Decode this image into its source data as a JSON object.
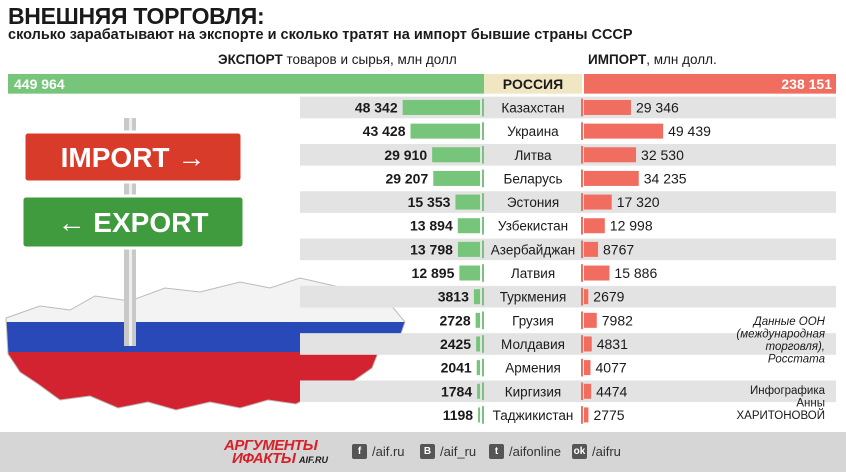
{
  "header": {
    "title": "ВНЕШНЯЯ ТОРГОВЛЯ:",
    "subtitle": "сколько зарабатывают на экспорте и сколько тратят на импорт бывшие страны СССР",
    "export_head_bold": "ЭКСПОРТ",
    "export_head_rest": " товаров и сырья, млн долл",
    "import_head_bold": "ИМПОРТ",
    "import_head_rest": ", млн долл."
  },
  "illustration": {
    "sign_top": "IMPORT →",
    "sign_bottom": "← EXPORT"
  },
  "colors": {
    "export": "#77c57a",
    "import": "#f06d5f",
    "row_band": "#e3e3e3",
    "russia_band": "#f1e6c2"
  },
  "chart_data": {
    "type": "bar",
    "series": [
      {
        "name": "ЭКСПОРТ",
        "values": [
          449964,
          48342,
          43428,
          29910,
          29207,
          15353,
          13894,
          13798,
          12895,
          3813,
          2728,
          2425,
          2041,
          1784,
          1198
        ]
      },
      {
        "name": "ИМПОРТ",
        "values": [
          238151,
          29346,
          49439,
          32530,
          34235,
          17320,
          12998,
          8767,
          15886,
          2679,
          7982,
          4831,
          4077,
          4474,
          2775
        ]
      }
    ],
    "categories": [
      "РОССИЯ",
      "Казахстан",
      "Украина",
      "Литва",
      "Беларусь",
      "Эстония",
      "Узбекистан",
      "Азербайджан",
      "Латвия",
      "Туркмения",
      "Грузия",
      "Молдавия",
      "Армения",
      "Киргизия",
      "Таджикистан"
    ],
    "labels_export": [
      "449 964",
      "48 342",
      "43 428",
      "29 910",
      "29 207",
      "15 353",
      "13 894",
      "13 798",
      "12 895",
      "3813",
      "2728",
      "2425",
      "2041",
      "1784",
      "1198"
    ],
    "labels_import": [
      "238 151",
      "29 346",
      "49 439",
      "32 530",
      "34 235",
      "17 320",
      "12 998",
      "8767",
      "15 886",
      "2679",
      "7982",
      "4831",
      "4077",
      "4474",
      "2775"
    ]
  },
  "notes": {
    "source": [
      "Данные ООН",
      "(международная",
      "торговля),",
      "Росстата"
    ],
    "credit": [
      "Инфографика",
      "Анны",
      "ХАРИТОНОВОЙ"
    ]
  },
  "footer": {
    "logo_line1": "АРГУМЕНТЫ",
    "logo_line2": "ИФАКТЫ",
    "logo_domain": "AIF.RU",
    "social": [
      {
        "icon": "f",
        "name": "facebook-icon",
        "label": "/aif.ru"
      },
      {
        "icon": "В",
        "name": "vk-icon",
        "label": "/aif_ru"
      },
      {
        "icon": "t",
        "name": "twitter-icon",
        "label": "/aifonline"
      },
      {
        "icon": "ok",
        "name": "odnoklassniki-icon",
        "label": "/aifru"
      }
    ]
  }
}
